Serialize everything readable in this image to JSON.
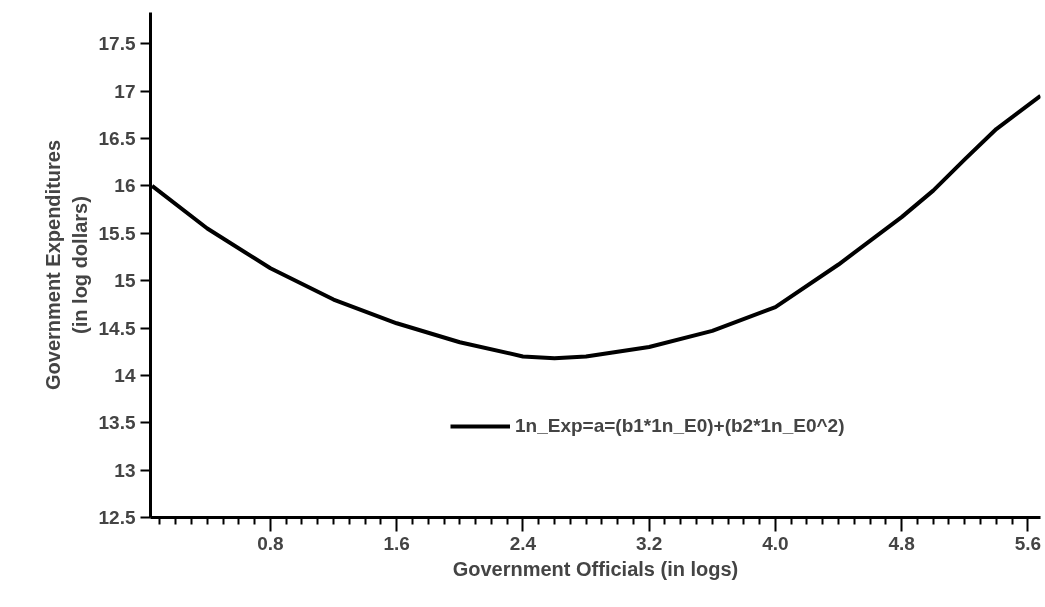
{
  "chart_data": {
    "type": "line",
    "xlabel": "Government Officials (in logs)",
    "ylabel": "Government Expenditures\n(in log dollars)",
    "x": [
      0.05,
      0.4,
      0.8,
      1.2,
      1.6,
      2.0,
      2.4,
      2.6,
      2.8,
      3.2,
      3.6,
      4.0,
      4.4,
      4.8,
      5.0,
      5.2,
      5.4,
      5.68
    ],
    "series": [
      {
        "name": "1n_Exp=a=(b1*1n_E0)+(b2*1n_E0^2)",
        "color": "#000000",
        "values": [
          16.0,
          15.55,
          15.13,
          14.8,
          14.55,
          14.35,
          14.2,
          14.18,
          14.2,
          14.3,
          14.47,
          14.72,
          15.17,
          15.67,
          15.95,
          16.28,
          16.6,
          16.95
        ]
      }
    ],
    "xlim": [
      0.04,
      5.68
    ],
    "ylim": [
      12.5,
      17.83
    ],
    "xticks": [
      {
        "value": 0.1,
        "label": null
      },
      {
        "value": 0.2,
        "label": null
      },
      {
        "value": 0.3,
        "label": null
      },
      {
        "value": 0.4,
        "label": null
      },
      {
        "value": 0.5,
        "label": null
      },
      {
        "value": 0.6,
        "label": null
      },
      {
        "value": 0.7,
        "label": null
      },
      0.8,
      {
        "value": 0.9,
        "label": null
      },
      {
        "value": 1.0,
        "label": null
      },
      {
        "value": 1.1,
        "label": null
      },
      {
        "value": 1.2,
        "label": null
      },
      {
        "value": 1.3,
        "label": null
      },
      {
        "value": 1.4,
        "label": null
      },
      {
        "value": 1.5,
        "label": null
      },
      1.6,
      {
        "value": 1.7,
        "label": null
      },
      {
        "value": 1.8,
        "label": null
      },
      {
        "value": 1.9,
        "label": null
      },
      {
        "value": 2.0,
        "label": null
      },
      {
        "value": 2.1,
        "label": null
      },
      {
        "value": 2.2,
        "label": null
      },
      {
        "value": 2.3,
        "label": null
      },
      2.4,
      {
        "value": 2.5,
        "label": null
      },
      {
        "value": 2.6,
        "label": null
      },
      {
        "value": 2.7,
        "label": null
      },
      {
        "value": 2.8,
        "label": null
      },
      {
        "value": 2.9,
        "label": null
      },
      {
        "value": 3.0,
        "label": null
      },
      {
        "value": 3.1,
        "label": null
      },
      3.2,
      {
        "value": 3.3,
        "label": null
      },
      {
        "value": 3.4,
        "label": null
      },
      {
        "value": 3.5,
        "label": null
      },
      {
        "value": 3.6,
        "label": null
      },
      {
        "value": 3.7,
        "label": null
      },
      {
        "value": 3.8,
        "label": null
      },
      {
        "value": 3.9,
        "label": null
      },
      {
        "value": 4.0,
        "label": "4.0"
      },
      {
        "value": 4.1,
        "label": null
      },
      {
        "value": 4.2,
        "label": null
      },
      {
        "value": 4.3,
        "label": null
      },
      {
        "value": 4.4,
        "label": null
      },
      {
        "value": 4.5,
        "label": null
      },
      {
        "value": 4.6,
        "label": null
      },
      {
        "value": 4.7,
        "label": null
      },
      4.8,
      {
        "value": 4.9,
        "label": null
      },
      {
        "value": 5.0,
        "label": null
      },
      {
        "value": 5.1,
        "label": null
      },
      {
        "value": 5.2,
        "label": null
      },
      {
        "value": 5.3,
        "label": null
      },
      {
        "value": 5.4,
        "label": null
      },
      {
        "value": 5.5,
        "label": null
      },
      5.6
    ],
    "yticks": [
      12.5,
      13,
      13.5,
      14,
      14.5,
      15,
      15.5,
      16,
      16.5,
      17,
      17.5
    ],
    "grid": false,
    "legend": "bottom right",
    "marker": "none",
    "line_style": "solid"
  }
}
